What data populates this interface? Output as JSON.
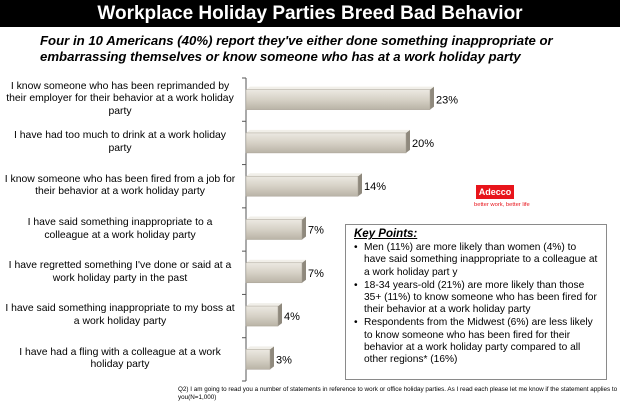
{
  "header": {
    "title": "Workplace Holiday Parties Breed Bad Behavior",
    "subtitle": "Four in 10 Americans (40%) report they've either done something inappropriate or embarrassing themselves or know someone who has at a work holiday party"
  },
  "chart_data": {
    "type": "bar",
    "orientation": "horizontal",
    "categories": [
      "I know someone who has  been reprimanded by their employer for their behavior at a work holiday party",
      "I have had too much to drink at a work holiday party",
      "I know someone who has been fired from a job for their behavior at a work holiday party",
      "I have said something inappropriate to a colleague at a work holiday party",
      "I have regretted something I've done or said at a work holiday party in the past",
      "I have said something inappropriate to my boss at a work holiday party",
      "I have had a fling with a colleague at a work holiday party"
    ],
    "values": [
      23,
      20,
      14,
      7,
      7,
      4,
      3
    ],
    "value_labels": [
      "23%",
      "20%",
      "14%",
      "7%",
      "7%",
      "4%",
      "3%"
    ],
    "xlim": [
      0,
      23
    ],
    "bar_color": "#d9d4c9",
    "grid": false
  },
  "logo": {
    "name": "Adecco",
    "tagline": "better work, better life",
    "color": "#e8141b"
  },
  "key_points": {
    "title": "Key Points:",
    "items": [
      "Men (11%) are more likely than women (4%) to have said something inappropriate to a colleague at a work holiday part y",
      "18-34 years-old (21%) are more likely than those 35+ (11%) to know someone who has been fired for their behavior at a work holiday party",
      "Respondents from the Midwest (6%) are less likely to know someone who has been fired for their behavior at a work holiday party compared to all other regions* (16%)"
    ]
  },
  "footnote": "Q2) I am going to read you a number of statements in reference to work or office holiday parties. As I read each please let me know if the statement applies to you(N=1,000)"
}
